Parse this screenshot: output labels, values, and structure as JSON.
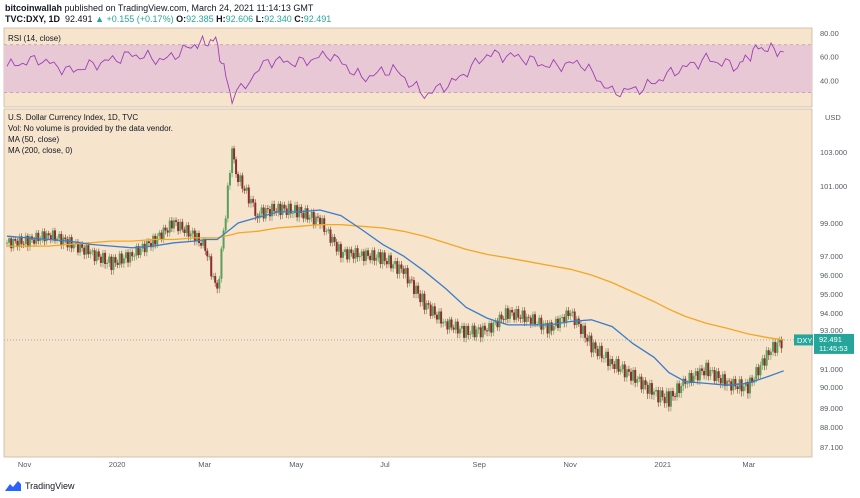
{
  "header": {
    "author": "bitcoinwallah",
    "published": "published on TradingView.com, March 24, 2021 11:14:13 GMT",
    "symbol": "TVC:DXY, 1D",
    "last": "92.491",
    "change": "+0.155 (+0.17%)",
    "o_label": "O:",
    "o": "92.385",
    "h_label": "H:",
    "h": "92.606",
    "l_label": "L:",
    "l": "92.340",
    "c_label": "C:",
    "c": "92.491"
  },
  "rsi_panel": {
    "label": "RSI (14, close)",
    "ticks": [
      "80.00",
      "60.00",
      "40.00"
    ]
  },
  "main_panel": {
    "title": "U.S. Dollar Currency Index, 1D, TVC",
    "legend": [
      "Vol: No volume is provided by the data vendor.",
      "MA (50, close)",
      "MA (200, close, 0)"
    ],
    "currency": "USD",
    "y_ticks": [
      "103.000",
      "101.000",
      "99.000",
      "97.000",
      "96.000",
      "95.000",
      "94.000",
      "93.000",
      "91.000",
      "90.000",
      "89.000",
      "88.000",
      "87.100"
    ],
    "x_ticks": [
      "Nov",
      "2020",
      "Mar",
      "May",
      "Jul",
      "Sep",
      "Nov",
      "2021",
      "Mar"
    ],
    "price_tag": "92.491",
    "price_tag_symbol": "DXY",
    "countdown": "11:45:53"
  },
  "footer": {
    "brand": "TradingView"
  },
  "colors": {
    "up": "#5a9e5a",
    "down": "#8a2d2d",
    "bg": "#f6e4cd",
    "ma50": "#3a7dc9",
    "ma200": "#f5a623",
    "rsi": "#9c3fb3",
    "rsi_band": "#e9c8d6"
  },
  "chart_data": [
    {
      "type": "line",
      "title": "RSI (14, close)",
      "ylim": [
        18,
        84
      ],
      "bands": [
        30,
        70
      ],
      "x": [
        "2019-10-20",
        "2019-11-10",
        "2019-12-01",
        "2019-12-22",
        "2020-01-12",
        "2020-02-02",
        "2020-02-23",
        "2020-03-08",
        "2020-03-19",
        "2020-04-12",
        "2020-05-03",
        "2020-05-24",
        "2020-06-14",
        "2020-07-05",
        "2020-07-26",
        "2020-08-16",
        "2020-09-06",
        "2020-09-27",
        "2020-10-18",
        "2020-11-08",
        "2020-11-29",
        "2020-12-20",
        "2021-01-10",
        "2021-01-31",
        "2021-02-21",
        "2021-03-07",
        "2021-03-24"
      ],
      "series": [
        {
          "values": [
            52,
            58,
            48,
            55,
            62,
            57,
            70,
            74,
            25,
            57,
            55,
            62,
            42,
            50,
            28,
            40,
            62,
            60,
            52,
            55,
            30,
            34,
            48,
            58,
            52,
            68,
            64
          ]
        }
      ]
    },
    {
      "type": "line",
      "title": "U.S. Dollar Currency Index, 1D, TVC",
      "xlabel": "",
      "ylabel": "",
      "ylim": [
        87.1,
        103.0
      ],
      "x": [
        "2019-10-20",
        "2019-11-03",
        "2019-11-17",
        "2019-12-01",
        "2019-12-15",
        "2019-12-29",
        "2020-01-12",
        "2020-01-26",
        "2020-02-09",
        "2020-02-23",
        "2020-03-01",
        "2020-03-09",
        "2020-03-19",
        "2020-03-23",
        "2020-04-05",
        "2020-04-19",
        "2020-05-03",
        "2020-05-17",
        "2020-05-31",
        "2020-06-14",
        "2020-06-28",
        "2020-07-12",
        "2020-07-26",
        "2020-08-09",
        "2020-08-23",
        "2020-09-06",
        "2020-09-20",
        "2020-10-04",
        "2020-10-18",
        "2020-11-01",
        "2020-11-15",
        "2020-11-29",
        "2020-12-13",
        "2020-12-27",
        "2021-01-06",
        "2021-01-17",
        "2021-01-31",
        "2021-02-14",
        "2021-02-28",
        "2021-03-14",
        "2021-03-24"
      ],
      "series": [
        {
          "name": "DXY",
          "values": [
            97.8,
            97.9,
            98.3,
            97.8,
            97.2,
            96.6,
            97.1,
            97.9,
            99.0,
            98.2,
            97.5,
            95.0,
            103.0,
            101.5,
            99.5,
            99.8,
            99.6,
            99.1,
            97.2,
            97.1,
            96.9,
            96.2,
            94.5,
            93.4,
            92.9,
            93.0,
            94.0,
            93.7,
            93.1,
            94.0,
            92.2,
            91.3,
            90.6,
            89.7,
            89.4,
            90.3,
            91.0,
            90.2,
            90.0,
            91.9,
            92.491
          ]
        },
        {
          "name": "MA (50, close)",
          "values": [
            98.2,
            98.1,
            98.0,
            97.9,
            97.7,
            97.6,
            97.5,
            97.6,
            97.8,
            97.9,
            98.0,
            98.0,
            98.7,
            99.0,
            99.3,
            99.6,
            99.6,
            99.7,
            99.4,
            98.6,
            97.7,
            97.0,
            96.2,
            95.3,
            94.3,
            93.7,
            93.3,
            93.3,
            93.3,
            93.5,
            93.6,
            93.2,
            92.3,
            91.6,
            90.8,
            90.3,
            90.2,
            90.1,
            90.2,
            90.6,
            90.9
          ]
        },
        {
          "name": "MA (200, close, 0)",
          "values": [
            97.6,
            97.6,
            97.6,
            97.7,
            97.8,
            97.9,
            97.9,
            98.0,
            98.0,
            98.1,
            98.1,
            98.1,
            98.3,
            98.4,
            98.5,
            98.7,
            98.8,
            98.9,
            98.9,
            98.8,
            98.7,
            98.5,
            98.2,
            97.8,
            97.4,
            97.1,
            96.9,
            96.7,
            96.5,
            96.3,
            96.0,
            95.6,
            95.1,
            94.6,
            94.2,
            93.8,
            93.4,
            93.1,
            92.8,
            92.6,
            92.5
          ]
        }
      ]
    }
  ]
}
